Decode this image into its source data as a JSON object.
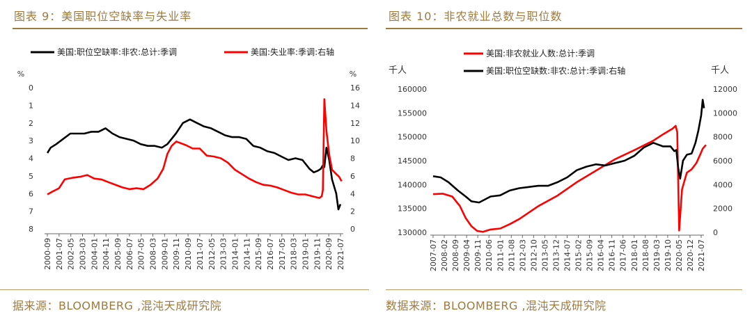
{
  "left": {
    "title": "图表 9：美国职位空缺率与失业率",
    "source": "据来源：BLOOMBERG ,混沌天成研究院",
    "left_unit": "%",
    "right_unit": "%"
  },
  "right": {
    "title": "图表 10：非农就业总数与职位数",
    "source": "数据来源：BLOOMBERG ,混沌天成研究院",
    "left_unit": "千人",
    "right_unit": "千人"
  },
  "chart_data": [
    {
      "type": "line",
      "title": "美国职位空缺率与失业率",
      "x_categories": [
        "2000-09",
        "2001-07",
        "2002-05",
        "2003-03",
        "2004-01",
        "2004-11",
        "2005-09",
        "2006-07",
        "2007-05",
        "2008-03",
        "2009-01",
        "2009-11",
        "2010-09",
        "2011-07",
        "2012-05",
        "2013-03",
        "2014-01",
        "2014-11",
        "2015-09",
        "2016-07",
        "2017-05",
        "2018-03",
        "2019-01",
        "2019-11",
        "2020-09",
        "2021-07"
      ],
      "y_left": {
        "ticks": [
          0,
          1,
          2,
          3,
          4,
          5,
          6,
          7,
          8
        ],
        "range": [
          0,
          8
        ],
        "inverted": true,
        "unit": "%"
      },
      "y_right": {
        "ticks": [
          0,
          2,
          4,
          6,
          8,
          10,
          12,
          14,
          16
        ],
        "range": [
          0,
          16
        ],
        "unit": "%"
      },
      "series": [
        {
          "name": "美国:职位空缺率:非农:总计:季调",
          "axis": "left",
          "color": "#000000",
          "x": [
            2000.67,
            2000.9,
            2001.3,
            2001.8,
            2002.3,
            2002.8,
            2003.3,
            2003.8,
            2004.3,
            2004.8,
            2005.3,
            2005.8,
            2006.3,
            2006.8,
            2007.3,
            2007.8,
            2008.3,
            2008.8,
            2009.2,
            2009.5,
            2009.8,
            2010.3,
            2010.8,
            2011.3,
            2011.8,
            2012.3,
            2012.8,
            2013.3,
            2013.8,
            2014.3,
            2014.8,
            2015.3,
            2015.8,
            2016.3,
            2016.8,
            2017.3,
            2017.8,
            2018.3,
            2018.8,
            2019.3,
            2019.6,
            2019.9,
            2020.1,
            2020.25,
            2020.35,
            2020.5,
            2020.7,
            2020.9,
            2021.2,
            2021.35,
            2021.5
          ],
          "values": [
            3.7,
            3.4,
            3.2,
            2.9,
            2.6,
            2.6,
            2.6,
            2.5,
            2.5,
            2.3,
            2.6,
            2.8,
            2.9,
            3.0,
            3.2,
            3.3,
            3.3,
            3.4,
            3.2,
            2.9,
            2.6,
            2.0,
            1.8,
            2.0,
            2.2,
            2.3,
            2.5,
            2.7,
            2.8,
            2.8,
            2.9,
            3.3,
            3.4,
            3.6,
            3.7,
            3.9,
            4.1,
            4.0,
            4.1,
            4.6,
            4.8,
            4.7,
            4.6,
            4.4,
            4.5,
            3.4,
            4.1,
            5.2,
            6.0,
            6.9,
            6.6
          ]
        },
        {
          "name": "美国:失业率:季调:右轴",
          "axis": "right",
          "color": "#ff0000",
          "x": [
            2000.67,
            2001.0,
            2001.5,
            2001.9,
            2002.5,
            2003.0,
            2003.5,
            2004.0,
            2004.5,
            2005.0,
            2005.5,
            2006.0,
            2006.5,
            2007.0,
            2007.5,
            2008.0,
            2008.5,
            2008.9,
            2009.2,
            2009.5,
            2009.83,
            2010.5,
            2011.0,
            2011.5,
            2012.0,
            2012.5,
            2013.0,
            2013.5,
            2014.0,
            2014.5,
            2015.0,
            2015.5,
            2016.0,
            2016.5,
            2017.0,
            2017.5,
            2018.0,
            2018.5,
            2019.0,
            2019.5,
            2020.0,
            2020.17,
            2020.25,
            2020.35,
            2020.5,
            2020.7,
            2020.9,
            2021.2,
            2021.4,
            2021.58
          ],
          "values": [
            3.9,
            4.2,
            4.6,
            5.6,
            5.8,
            5.9,
            6.1,
            5.7,
            5.6,
            5.3,
            5.0,
            4.7,
            4.5,
            4.6,
            4.5,
            5.0,
            5.7,
            6.8,
            8.5,
            9.4,
            9.9,
            9.5,
            9.1,
            9.1,
            8.3,
            8.2,
            8.0,
            7.5,
            6.7,
            6.2,
            5.7,
            5.3,
            5.0,
            4.9,
            4.7,
            4.4,
            4.1,
            3.9,
            3.9,
            3.7,
            3.5,
            3.7,
            4.4,
            14.7,
            11.1,
            8.4,
            6.7,
            6.2,
            5.9,
            5.4
          ]
        }
      ]
    },
    {
      "type": "line",
      "title": "非农就业总数与职位数",
      "x_categories": [
        "2007-07",
        "2008-02",
        "2008-09",
        "2009-04",
        "2009-11",
        "2010-06",
        "2011-01",
        "2011-08",
        "2012-03",
        "2012-10",
        "2013-05",
        "2013-12",
        "2014-07",
        "2015-02",
        "2015-09",
        "2016-04",
        "2016-11",
        "2017-06",
        "2018-01",
        "2018-08",
        "2019-03",
        "2019-10",
        "2020-05",
        "2020-12",
        "2021-07"
      ],
      "y_left": {
        "ticks": [
          130000,
          135000,
          140000,
          145000,
          150000,
          155000,
          160000
        ],
        "range": [
          130000,
          160000
        ],
        "unit": "千人"
      },
      "y_right": {
        "ticks": [
          0,
          2000,
          4000,
          6000,
          8000,
          10000,
          12000
        ],
        "range": [
          0,
          12000
        ],
        "unit": "千人"
      },
      "series": [
        {
          "name": "美国:非农就业人数:总计:季调",
          "axis": "left",
          "color": "#ff0000",
          "x": [
            2007.5,
            2008.0,
            2008.5,
            2008.9,
            2009.2,
            2009.5,
            2009.8,
            2010.1,
            2010.5,
            2011.0,
            2011.5,
            2012.0,
            2013.0,
            2014.0,
            2015.0,
            2016.0,
            2017.0,
            2018.0,
            2019.0,
            2019.5,
            2020.0,
            2020.17,
            2020.25,
            2020.35,
            2020.5,
            2020.75,
            2021.0,
            2021.25,
            2021.42,
            2021.58,
            2021.75
          ],
          "values": [
            138000,
            138100,
            137500,
            135500,
            133000,
            131300,
            130300,
            130100,
            130600,
            130800,
            131700,
            132800,
            135500,
            137700,
            140500,
            142900,
            145300,
            147200,
            149200,
            150500,
            151700,
            152300,
            151000,
            130400,
            139000,
            142500,
            143200,
            144500,
            146000,
            147500,
            148300
          ]
        },
        {
          "name": "美国:职位空缺数:非农:总计:季调:右轴",
          "axis": "right",
          "color": "#000000",
          "x": [
            2007.5,
            2007.9,
            2008.3,
            2008.8,
            2009.2,
            2009.5,
            2009.9,
            2010.5,
            2011.0,
            2011.5,
            2012.0,
            2012.5,
            2013.0,
            2013.5,
            2014.0,
            2014.5,
            2015.0,
            2015.5,
            2016.0,
            2016.5,
            2017.0,
            2017.5,
            2018.0,
            2018.5,
            2019.0,
            2019.5,
            2019.9,
            2020.1,
            2020.2,
            2020.3,
            2020.4,
            2020.55,
            2020.75,
            2021.0,
            2021.2,
            2021.35,
            2021.5,
            2021.58,
            2021.65
          ],
          "values": [
            4700,
            4600,
            4200,
            3500,
            3000,
            2600,
            2500,
            3000,
            3100,
            3500,
            3700,
            3800,
            3900,
            3900,
            4200,
            4600,
            5200,
            5500,
            5700,
            5600,
            5800,
            6000,
            6400,
            7100,
            7500,
            7200,
            7200,
            6800,
            6900,
            5400,
            4500,
            6000,
            6500,
            6600,
            7500,
            8500,
            9800,
            11100,
            10400
          ]
        }
      ]
    }
  ]
}
